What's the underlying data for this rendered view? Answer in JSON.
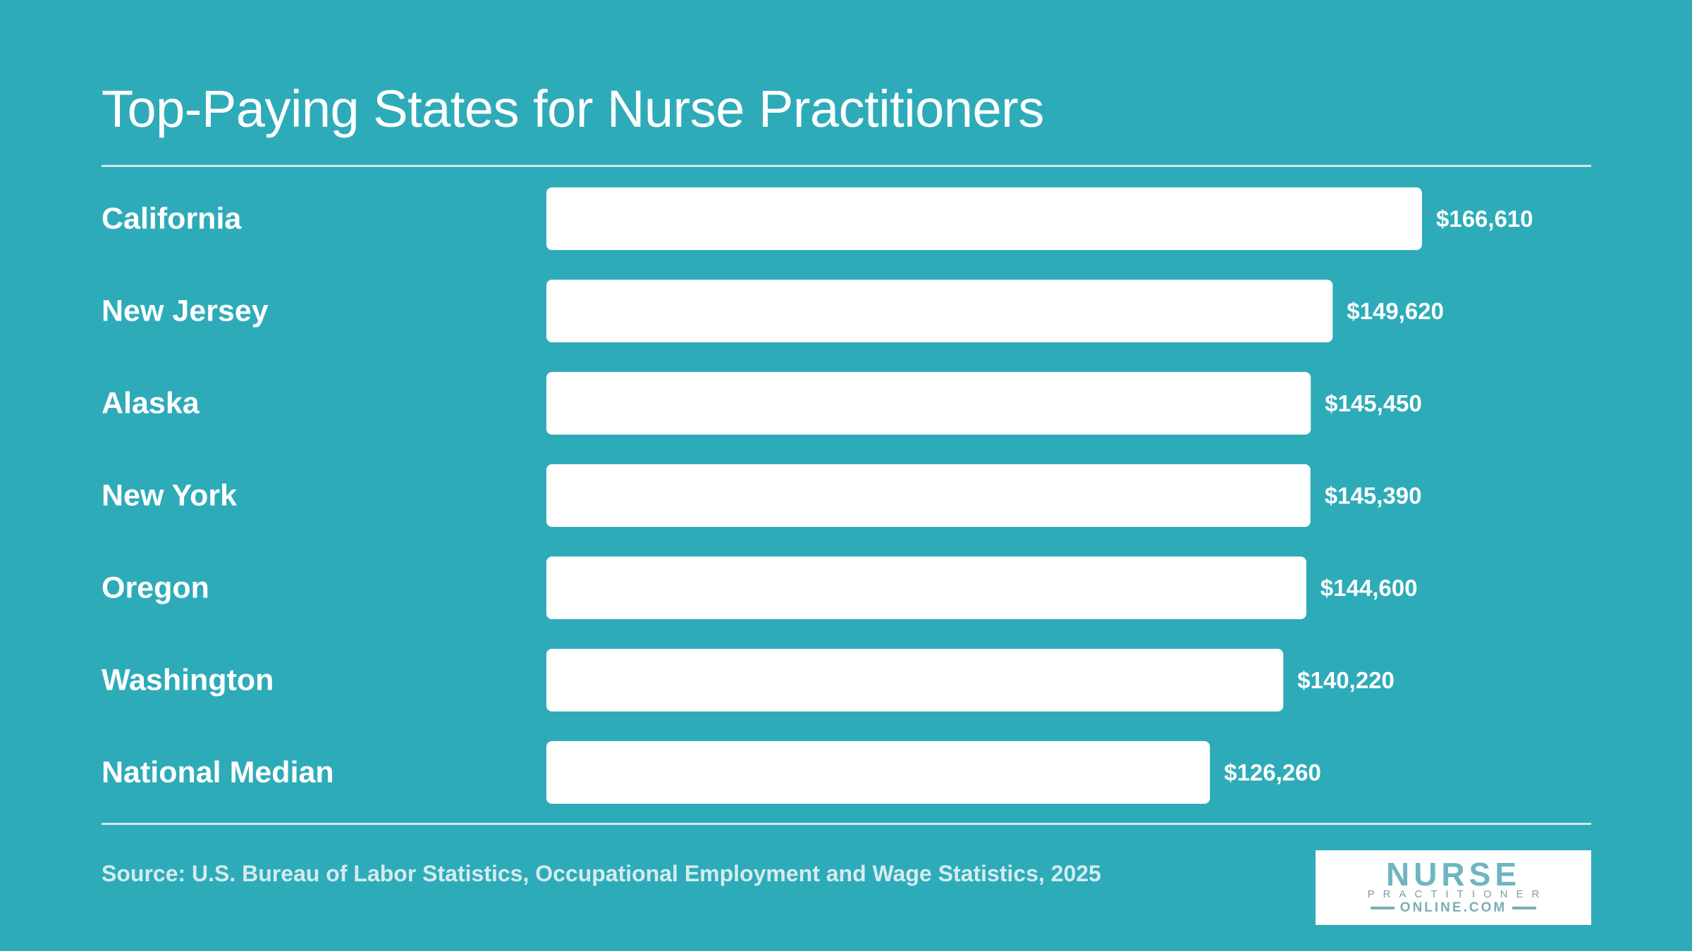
{
  "chart_data": {
    "type": "bar",
    "orientation": "horizontal",
    "title": "Top-Paying States for Nurse Practitioners",
    "categories": [
      "California",
      "New Jersey",
      "Alaska",
      "New York",
      "Oregon",
      "Washington",
      "National Median"
    ],
    "values": [
      166610,
      149620,
      145450,
      145390,
      144600,
      140220,
      126260
    ],
    "value_labels": [
      "$166,610",
      "$149,620",
      "$145,450",
      "$145,390",
      "$144,600",
      "$140,220",
      "$126,260"
    ],
    "xlim": [
      0,
      166610
    ],
    "grid": false,
    "colors": {
      "background": "#2eabb9",
      "bar": "#ffffff",
      "text": "#ffffff"
    }
  },
  "footer": {
    "source": "Source: U.S. Bureau of Labor Statistics, Occupational Employment and Wage Statistics, 2025"
  },
  "logo": {
    "main": "NURSE",
    "sub": "PRACTITIONER",
    "bottom": "ONLINE.COM"
  }
}
